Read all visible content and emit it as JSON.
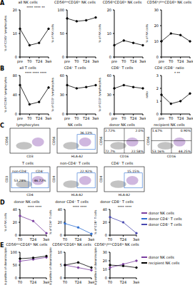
{
  "panel_labels": [
    "A",
    "B",
    "C",
    "D",
    "E"
  ],
  "chart_data": [
    {
      "type": "line",
      "title": "all NK cells",
      "y_label": "% of CD45⁺ lymphocytes",
      "categories": [
        "pre",
        "T0",
        "T24",
        "3wk"
      ],
      "values": [
        12,
        5,
        6,
        12
      ],
      "color": "#000000",
      "marker": "circle",
      "ylim": [
        0,
        20
      ],
      "yticks": [
        0,
        10,
        20
      ],
      "annotations": [
        "****",
        "****",
        "**"
      ]
    },
    {
      "type": "line",
      "title": "CD56ᵈⁱᵐCD16ʰⁱ NK cells",
      "y_label": "% of NK cells",
      "categories": [
        "pre",
        "T0",
        "T24",
        "3wk"
      ],
      "values": [
        82,
        76,
        78,
        84
      ],
      "color": "#000000",
      "marker": "circle",
      "ylim": [
        0,
        100
      ],
      "yticks": [
        0,
        50,
        100
      ]
    },
    {
      "type": "line",
      "title": "CD56ʰⁱCD16ˡᵒ NK cells",
      "y_label": "% of NK cells",
      "categories": [
        "pre",
        "T0",
        "T24",
        "3wk"
      ],
      "values": [
        5,
        7,
        6,
        5
      ],
      "color": "#000000",
      "marker": "circle",
      "ylim": [
        0,
        20
      ],
      "yticks": [
        0,
        10,
        20
      ]
    },
    {
      "type": "line",
      "title": "CD56ʰⁱ/ᵈⁱᵐCD16ˡᵒ NK cells",
      "y_label": "% of NK cells",
      "categories": [
        "pre",
        "T0",
        "T24",
        "3wk"
      ],
      "values": [
        10,
        15,
        14,
        10
      ],
      "color": "#000000",
      "marker": "circle",
      "ylim": [
        0,
        30
      ],
      "yticks": [
        0,
        10,
        20,
        30
      ]
    },
    {
      "type": "line",
      "title": "all T cells",
      "y_label": "% of CD45⁺ lymphocytes",
      "categories": [
        "pre",
        "T0",
        "T24",
        "3wk"
      ],
      "values": [
        60,
        20,
        25,
        55
      ],
      "color": "#000000",
      "marker": "circle",
      "ylim": [
        0,
        80
      ],
      "yticks": [
        0,
        40,
        80
      ],
      "annotations": [
        "****",
        "****",
        "****"
      ]
    },
    {
      "type": "line",
      "title": "CD4⁺ T cells",
      "y_label": "% of CD3⁺ lymphocytes",
      "categories": [
        "pre",
        "T0",
        "T24",
        "3wk"
      ],
      "values": [
        45,
        40,
        42,
        45
      ],
      "color": "#000000",
      "marker": "circle",
      "ylim": [
        0,
        60
      ],
      "yticks": [
        0,
        30,
        60
      ]
    },
    {
      "type": "line",
      "title": "CD8⁺ T cells",
      "y_label": "% of CD3⁺ lymphocytes",
      "categories": [
        "pre",
        "T0",
        "T24",
        "3wk"
      ],
      "values": [
        40,
        45,
        42,
        40
      ],
      "color": "#000000",
      "marker": "circle",
      "ylim": [
        0,
        60
      ],
      "yticks": [
        0,
        30,
        60
      ]
    },
    {
      "type": "line",
      "title": "CD4⁺/CD8⁺ ratio",
      "y_label": "ratio",
      "categories": [
        "pre",
        "T0",
        "T24",
        "3wk"
      ],
      "values": [
        1.5,
        0.8,
        1.0,
        1.6
      ],
      "color": "#000000",
      "marker": "circle",
      "ylim": [
        0,
        3
      ],
      "yticks": [
        0,
        1,
        2,
        3
      ],
      "annotations": [
        "*",
        "**"
      ]
    },
    {
      "type": "line",
      "title": "donor NK cells",
      "y_label": "% of NK cells",
      "categories": [
        "T0",
        "T24",
        "3wk"
      ],
      "series": [
        {
          "name": "donor NK cells",
          "color": "#7b3fa0",
          "values": [
            30,
            22,
            3
          ]
        }
      ],
      "marker": "circle",
      "ylim": [
        0,
        40
      ],
      "yticks": [
        0,
        20,
        40
      ],
      "annotations": [
        "****",
        "****"
      ]
    },
    {
      "type": "line",
      "title": "donor CD4⁺ T cells",
      "y_label": "% of CD4⁺ T cells",
      "categories": [
        "T0",
        "T24",
        "3wk"
      ],
      "series": [
        {
          "name": "donor CD4⁺ T cells",
          "color": "#2f6fd0",
          "values": [
            18,
            12,
            2
          ]
        }
      ],
      "marker": "circle",
      "ylim": [
        0,
        40
      ],
      "yticks": [
        0,
        20,
        40
      ],
      "annotations": [
        "****",
        "****"
      ]
    },
    {
      "type": "line",
      "title": "donor CD8⁺ T cells",
      "y_label": "% of CD8⁺ T cells",
      "categories": [
        "T0",
        "T24",
        "3wk"
      ],
      "series": [
        {
          "name": "donor CD8⁺ T cells",
          "color": "#4a4ab0",
          "values": [
            28,
            20,
            3
          ]
        }
      ],
      "marker": "circle",
      "ylim": [
        0,
        40
      ],
      "yticks": [
        0,
        20,
        40
      ],
      "annotations": [
        "****",
        "****"
      ]
    },
    {
      "type": "line",
      "title": "CD56ᵈⁱᵐCD16ʰⁱ NK cells",
      "y_label": "% positive of donor/recipient",
      "categories": [
        "T0",
        "T24",
        "3wk"
      ],
      "series": [
        {
          "name": "donor NK cells",
          "color": "#7b3fa0",
          "values": [
            65,
            72,
            80
          ]
        },
        {
          "name": "recipient NK cells",
          "color": "#000000",
          "values": [
            75,
            78,
            85
          ]
        }
      ],
      "marker": "circle",
      "ylim": [
        0,
        100
      ],
      "yticks": [
        0,
        50,
        100
      ]
    },
    {
      "type": "line",
      "title": "CD56ʰⁱCD16ˡᵒ NK cells",
      "y_label": "% positive of donor/recipient",
      "categories": [
        "T0",
        "T24",
        "3wk"
      ],
      "series": [
        {
          "name": "donor NK cells",
          "color": "#7b3fa0",
          "values": [
            5,
            4,
            3
          ]
        },
        {
          "name": "recipient NK cells",
          "color": "#000000",
          "values": [
            5,
            6,
            4
          ]
        }
      ],
      "marker": "circle",
      "ylim": [
        0,
        10
      ],
      "yticks": [
        0,
        5,
        10
      ]
    },
    {
      "type": "line",
      "title": "CD56ʰⁱ/ᵈⁱᵐCD16ˡᵒ NK cells",
      "y_label": "% positive of donor/recipient",
      "categories": [
        "T0",
        "T24",
        "3wk"
      ],
      "series": [
        {
          "name": "donor NK cells",
          "color": "#7b3fa0",
          "values": [
            12,
            16,
            20
          ]
        },
        {
          "name": "recipient NK cells",
          "color": "#000000",
          "values": [
            15,
            14,
            12
          ]
        }
      ],
      "marker": "circle",
      "ylim": [
        0,
        30
      ],
      "yticks": [
        0,
        10,
        20,
        30
      ]
    }
  ],
  "flow_plots": [
    {
      "title": "lymphocytes",
      "x_label": "CD3",
      "y_label": "CD56",
      "gates": []
    },
    {
      "title": "NK cells",
      "x_label": "HLA-A2",
      "y_label": "CD56",
      "gates": [
        {
          "label": "36.13%"
        }
      ]
    },
    {
      "title": "donor NK cells",
      "x_label": "CD16",
      "y_label": "CD56",
      "quadrants": [
        "2.72%",
        "2.0%",
        "72.7%",
        "22.58%"
      ]
    },
    {
      "title": "recipient NK cells",
      "x_label": "CD16",
      "y_label": "CD56",
      "quadrants": [
        "1.67%",
        "0.90%",
        "53.16%",
        "44.25%"
      ]
    },
    {
      "title": "T cells",
      "x_label": "CD4",
      "y_label": "CD3",
      "gates": [
        {
          "label": "non-CD4⁺",
          "value": "53.28%"
        },
        {
          "label": "CD4⁺",
          "value": "46.72%"
        }
      ]
    },
    {
      "title": "non-CD4⁺ T cells",
      "x_label": "HLA-A2",
      "y_label": "CD4",
      "gates": [
        {
          "label": "22.92%"
        }
      ]
    },
    {
      "title": "CD4⁺ T cells",
      "x_label": "HLA-A2",
      "y_label": "CD4",
      "gates": [
        {
          "label": "15.15%"
        }
      ]
    }
  ]
}
